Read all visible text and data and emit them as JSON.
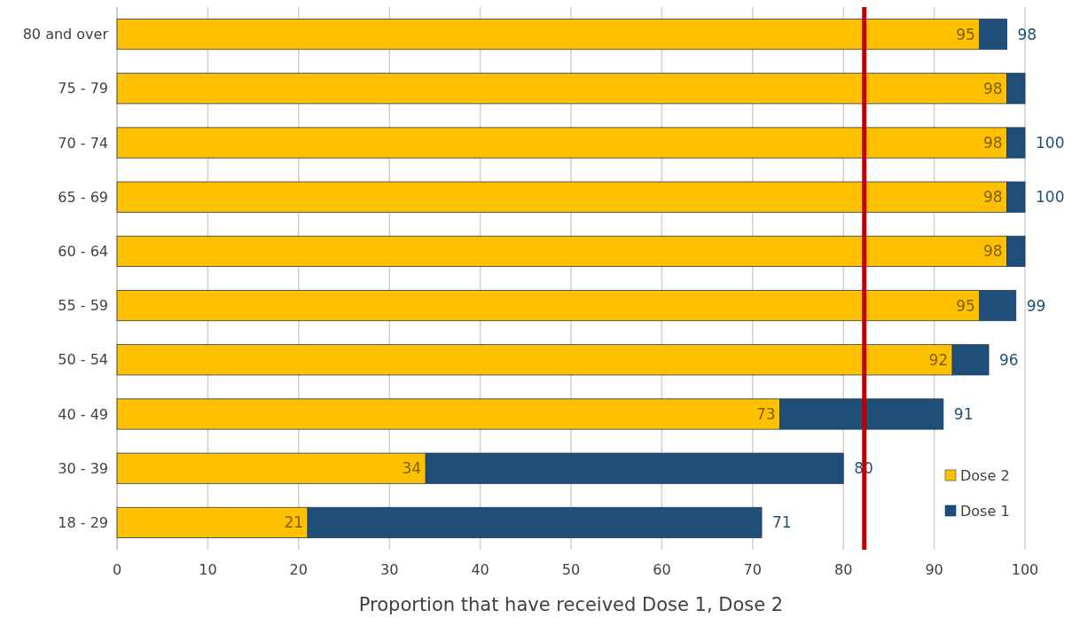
{
  "chart_data": {
    "type": "bar",
    "orientation": "horizontal",
    "stacked": true,
    "xlabel": "Proportion that have received Dose 1, Dose 2",
    "categories": [
      "80 and over",
      "75 - 79",
      "70 - 74",
      "65 - 69",
      "60 - 64",
      "55 - 59",
      "50 - 54",
      "40 - 49",
      "30 - 39",
      "18 - 29"
    ],
    "series": [
      {
        "name": "Dose 2",
        "color": "#ffc000",
        "values": [
          95,
          98,
          98,
          98,
          98,
          95,
          92,
          73,
          34,
          21
        ],
        "value_labels": [
          "95",
          "98",
          "98",
          "98",
          "98",
          "95",
          "92",
          "73",
          "34",
          "21"
        ]
      },
      {
        "name": "Dose 1",
        "color": "#1f4e79",
        "values": [
          3,
          2,
          2,
          2,
          2,
          4,
          4,
          18,
          46,
          50
        ]
      }
    ],
    "totals": [
      "98",
      null,
      "100",
      "100",
      null,
      "99",
      "96",
      "91",
      "80",
      "71"
    ],
    "xlim": [
      0,
      100
    ],
    "xticks": [
      0,
      10,
      20,
      30,
      40,
      50,
      60,
      70,
      80,
      90,
      100
    ],
    "grid": "x",
    "legend": "bottom right",
    "ref_lines": [
      {
        "axis": "x",
        "value": 82.3,
        "color": "#c00000"
      }
    ]
  }
}
